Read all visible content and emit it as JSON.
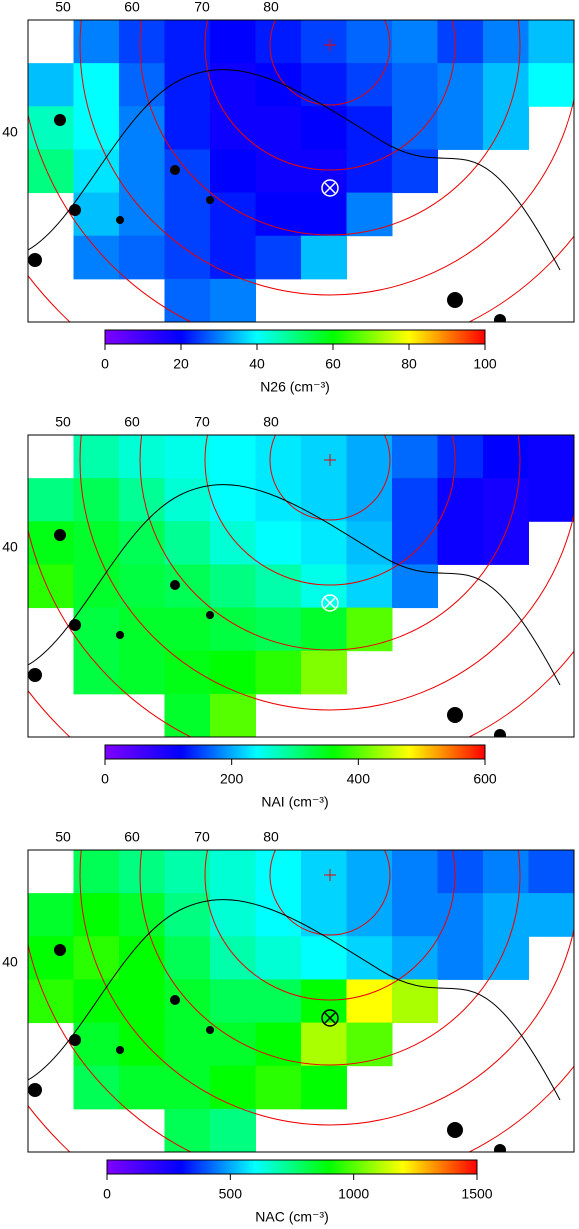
{
  "chart_data": [
    {
      "type": "heatmap",
      "xticks": [
        50,
        60,
        70,
        80
      ],
      "yticks": [
        40
      ],
      "zlim": [
        0,
        100
      ],
      "zticks": [
        0,
        20,
        40,
        60,
        80,
        100
      ],
      "colorbar_label": "N26 (cm⁻³)",
      "colormap": [
        "#7f00ff",
        "#0000ff",
        "#00ffff",
        "#00ff00",
        "#ffff00",
        "#ff0000"
      ],
      "grid": [
        [
          null,
          30,
          25,
          22,
          20,
          22,
          25,
          28,
          30,
          25,
          30,
          35
        ],
        [
          35,
          40,
          28,
          22,
          18,
          20,
          22,
          25,
          28,
          30,
          35,
          40
        ],
        [
          45,
          40,
          30,
          22,
          18,
          18,
          20,
          22,
          28,
          30,
          35,
          null
        ],
        [
          50,
          38,
          30,
          25,
          20,
          18,
          18,
          22,
          25,
          null,
          null,
          null
        ],
        [
          null,
          35,
          30,
          25,
          22,
          20,
          20,
          30,
          null,
          null,
          null,
          null
        ],
        [
          null,
          30,
          28,
          25,
          22,
          25,
          35,
          null,
          null,
          null,
          null,
          null
        ],
        [
          null,
          null,
          null,
          28,
          30,
          null,
          null,
          null,
          null,
          null,
          null,
          null
        ]
      ]
    },
    {
      "type": "heatmap",
      "xticks": [
        50,
        60,
        70,
        80
      ],
      "yticks": [
        40
      ],
      "zlim": [
        0,
        600
      ],
      "zticks": [
        0,
        200,
        400,
        600
      ],
      "colorbar_label": "NAI (cm⁻³)",
      "colormap": [
        "#7f00ff",
        "#0000ff",
        "#00ffff",
        "#00ff00",
        "#ffff00",
        "#ff0000"
      ],
      "grid": [
        [
          null,
          280,
          260,
          250,
          240,
          230,
          220,
          200,
          170,
          140,
          120,
          110
        ],
        [
          300,
          320,
          290,
          260,
          240,
          230,
          220,
          200,
          150,
          110,
          100,
          110
        ],
        [
          350,
          340,
          320,
          290,
          260,
          240,
          230,
          210,
          150,
          110,
          100,
          null
        ],
        [
          380,
          340,
          330,
          320,
          300,
          280,
          250,
          220,
          180,
          null,
          null,
          null
        ],
        [
          null,
          330,
          340,
          340,
          330,
          320,
          340,
          400,
          null,
          null,
          null,
          null
        ],
        [
          null,
          330,
          340,
          350,
          360,
          380,
          420,
          null,
          null,
          null,
          null,
          null
        ],
        [
          null,
          null,
          null,
          340,
          400,
          null,
          null,
          null,
          null,
          null,
          null,
          null
        ]
      ]
    },
    {
      "type": "heatmap",
      "xticks": [
        50,
        60,
        70,
        80
      ],
      "yticks": [
        40
      ],
      "zlim": [
        0,
        1500
      ],
      "zticks": [
        0,
        500,
        1000,
        1500
      ],
      "colorbar_label": "NAC (cm⁻³)",
      "colormap": [
        "#7f00ff",
        "#0000ff",
        "#00ffff",
        "#00ff00",
        "#ffff00",
        "#ff0000"
      ],
      "grid": [
        [
          null,
          800,
          750,
          700,
          650,
          600,
          550,
          500,
          450,
          400,
          450,
          400
        ],
        [
          850,
          900,
          850,
          750,
          650,
          600,
          550,
          500,
          450,
          450,
          500,
          500
        ],
        [
          900,
          950,
          900,
          800,
          700,
          650,
          600,
          550,
          500,
          450,
          500,
          null
        ],
        [
          950,
          900,
          900,
          850,
          800,
          800,
          900,
          1200,
          1100,
          null,
          null,
          null
        ],
        [
          null,
          850,
          900,
          850,
          850,
          900,
          1100,
          1000,
          null,
          null,
          null,
          null
        ],
        [
          null,
          800,
          850,
          850,
          900,
          950,
          900,
          null,
          null,
          null,
          null,
          null
        ],
        [
          null,
          null,
          null,
          800,
          750,
          null,
          null,
          null,
          null,
          null,
          null,
          null
        ]
      ]
    }
  ]
}
